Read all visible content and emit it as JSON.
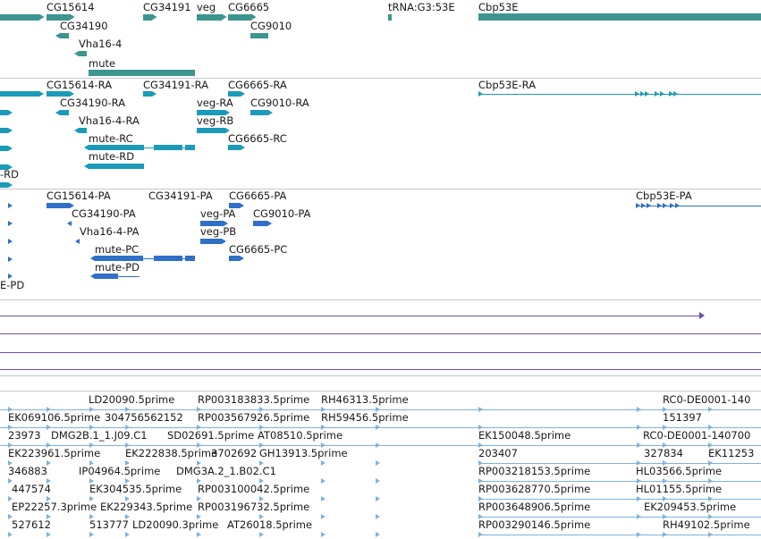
{
  "colors": {
    "gene": "#3d9590",
    "mrna": "#1b9bb8",
    "protein": "#2f6fc7",
    "rna_line": "#6a4fa8",
    "est": "#7fb3dc",
    "separator": "#c4c8cc"
  },
  "tracks": {
    "genes": {
      "labels": {
        "cg15614": "CG15614",
        "cg34191": "CG34191",
        "veg": "veg",
        "cg6665": "CG6665",
        "trna": "tRNA:G3:53E",
        "cbp53e": "Cbp53E",
        "cg34190": "CG34190",
        "cg9010": "CG9010",
        "vha16": "Vha16-4",
        "mute": "mute"
      }
    },
    "transcripts": {
      "labels": {
        "cg15614_ra": "CG15614-RA",
        "cg34191_ra": "CG34191-RA",
        "cg6665_ra": "CG6665-RA",
        "cbp53e_ra": "Cbp53E-RA",
        "cg34190_ra": "CG34190-RA",
        "veg_ra": "veg-RA",
        "cg9010_ra": "CG9010-RA",
        "vha16_ra": "Vha16-4-RA",
        "veg_rb": "veg-RB",
        "mute_rc": "mute-RC",
        "cg6665_rc": "CG6665-RC",
        "mute_rd": "mute-RD",
        "edge_rd": "-RD"
      }
    },
    "proteins": {
      "labels": {
        "cg15614_pa": "CG15614-PA",
        "cg34191_pa": "CG34191-PA",
        "cg6665_pa": "CG6665-PA",
        "cbp53e_pa": "Cbp53E-PA",
        "cg34190_pa": "CG34190-PA",
        "veg_pa": "veg-PA",
        "cg9010_pa": "CG9010-PA",
        "vha16_pa": "Vha16-4-PA",
        "veg_pb": "veg-PB",
        "mute_pc": "mute-PC",
        "cg6665_pc": "CG6665-PC",
        "mute_pd": "mute-PD",
        "edge_pd": "E-PD"
      }
    },
    "ests": {
      "labels": [
        "LD20090.5prime",
        "RP003183833.5prime",
        "RH46313.5prime",
        "RC0-DE0001-140",
        "EK069106.5prime",
        "304756562152",
        "RP003567926.5prime",
        "RH59456.5prime",
        "151397",
        "23973",
        "DMG2B.1_1.J09.C1",
        "SD02691.5prime",
        "AT08510.5prime",
        "EK150048.5prime",
        "RC0-DE0001-140700",
        "EK223961.5prime",
        "EK222838.5prime",
        "3702692",
        "GH13913.5prime",
        "203407",
        "327834",
        "EK11253",
        "346883",
        "IP04964.5prime",
        "DMG3A.2_1.B02.C1",
        "RP003218153.5prime",
        "HL03566.5prime",
        "447574",
        "EK304535.5prime",
        "RP003100042.5prime",
        "RP003628770.5prime",
        "HL01155.5prime",
        "EP22257.3prime",
        "EK229343.5prime",
        "RP003196732.5prime",
        "RP003648906.5prime",
        "EK209453.5prime",
        "527612",
        "513777",
        "LD20090.3prime",
        "AT26018.5prime",
        "RP003290146.5prime",
        "RH49102.5prime"
      ]
    }
  }
}
